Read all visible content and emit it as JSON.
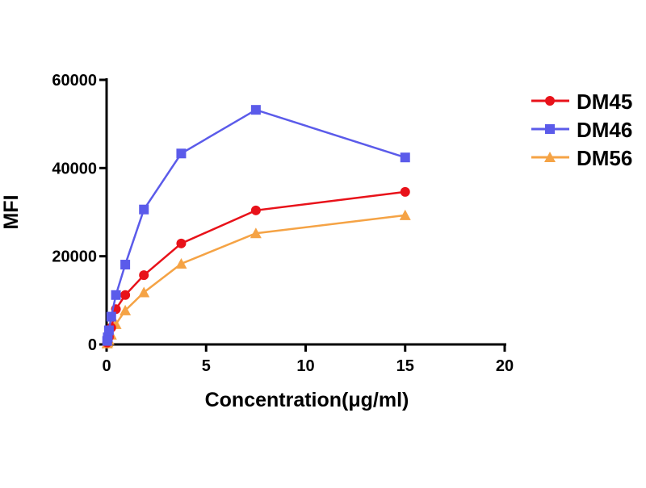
{
  "chart_data": {
    "type": "line",
    "title": "",
    "xlabel": "Concentration(μg/ml)",
    "ylabel": "MFI",
    "xlim": [
      0,
      20
    ],
    "ylim": [
      0,
      60000
    ],
    "xticks": [
      "0",
      "5",
      "10",
      "15",
      "20"
    ],
    "yticks": [
      "0",
      "20000",
      "40000",
      "60000"
    ],
    "legend_position": "right",
    "x": [
      0.029,
      0.059,
      0.117,
      0.234,
      0.469,
      0.9375,
      1.875,
      3.75,
      7.5,
      15
    ],
    "series": [
      {
        "name": "DM45",
        "color": "#e8121a",
        "marker": "circle",
        "values": [
          400,
          900,
          1700,
          3800,
          8000,
          11200,
          15700,
          22900,
          30400,
          34600
        ]
      },
      {
        "name": "DM46",
        "color": "#5b5bea",
        "marker": "square",
        "values": [
          800,
          1600,
          3200,
          6300,
          11200,
          18100,
          30600,
          43300,
          53200,
          42400
        ]
      },
      {
        "name": "DM56",
        "color": "#f5a345",
        "marker": "triangle",
        "values": [
          200,
          500,
          1000,
          2200,
          4600,
          7700,
          11800,
          18300,
          25200,
          29300
        ]
      }
    ]
  }
}
